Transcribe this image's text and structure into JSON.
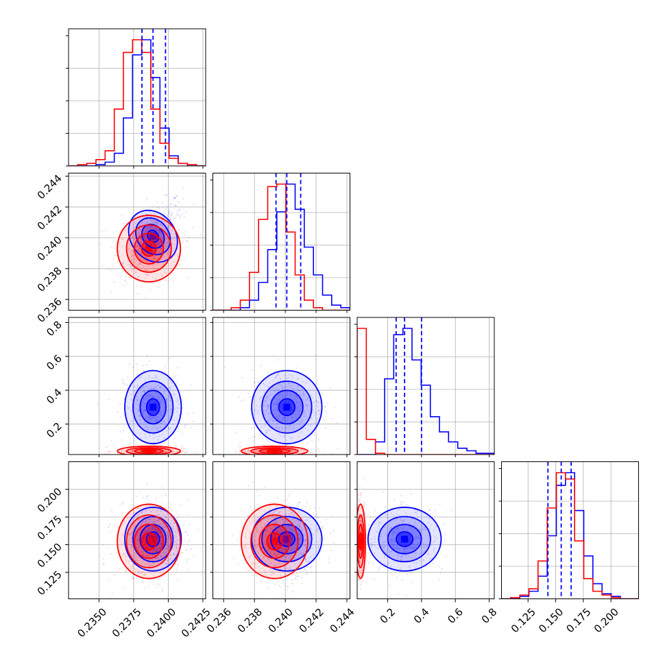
{
  "chart_data": {
    "type": "corner",
    "grid": true,
    "colors": {
      "series_a": "#0000ff",
      "series_b": "#ff0000"
    },
    "params": [
      {
        "range": [
          0.2328,
          0.2427
        ],
        "ticks": [
          0.235,
          0.2375,
          0.24,
          0.2425
        ],
        "tick_labels": [
          "0.2350",
          "0.2375",
          "0.2400",
          "0.2425"
        ]
      },
      {
        "range": [
          0.2353,
          0.2442
        ],
        "ticks": [
          0.236,
          0.238,
          0.24,
          0.242,
          0.244
        ],
        "tick_labels": [
          "0.236",
          "0.238",
          "0.240",
          "0.242",
          "0.244"
        ]
      },
      {
        "range": [
          0.02,
          0.83
        ],
        "ticks": [
          0.2,
          0.4,
          0.6,
          0.8
        ],
        "tick_labels": [
          "0.2",
          "0.4",
          "0.6",
          "0.8"
        ]
      },
      {
        "range": [
          0.101,
          0.225
        ],
        "ticks": [
          0.125,
          0.15,
          0.175,
          0.2
        ],
        "tick_labels": [
          "0.125",
          "0.150",
          "0.175",
          "0.200"
        ]
      }
    ],
    "series": [
      {
        "key": "a",
        "color": "#0000ff",
        "center": [
          0.2389,
          0.2401,
          0.3,
          0.155
        ],
        "sd": [
          0.00085,
          0.00095,
          0.09,
          0.012
        ],
        "corr": {
          "0-1": 0.7
        },
        "quantiles": [
          [
            0.2381,
            0.2389,
            0.2398
          ],
          [
            0.2394,
            0.2401,
            0.241
          ],
          [
            0.25,
            0.3,
            0.4
          ],
          [
            0.143,
            0.155,
            0.164
          ]
        ],
        "histograms": [
          [
            0.0,
            0.0,
            0.0,
            0.01,
            0.03,
            0.1,
            0.38,
            0.88,
            1.0,
            0.7,
            0.3,
            0.08,
            0.02,
            0.0,
            0.0
          ],
          [
            0.0,
            0.0,
            0.0,
            0.02,
            0.08,
            0.22,
            0.48,
            0.78,
            1.0,
            0.8,
            0.5,
            0.28,
            0.12,
            0.04,
            0.02
          ],
          [
            0.0,
            0.0,
            0.1,
            0.6,
            0.95,
            1.0,
            0.75,
            0.55,
            0.3,
            0.18,
            0.1,
            0.05,
            0.03,
            0.01,
            0.01
          ],
          [
            0.0,
            0.0,
            0.02,
            0.06,
            0.18,
            0.5,
            0.9,
            1.0,
            0.7,
            0.34,
            0.12,
            0.04,
            0.02,
            0.0,
            0.0
          ]
        ]
      },
      {
        "key": "b",
        "color": "#ff0000",
        "center": [
          0.2386,
          0.2393,
          0.04,
          0.153
        ],
        "sd": [
          0.00095,
          0.0009,
          0.012,
          0.014
        ],
        "corr": {},
        "quantiles": [],
        "histograms": [
          [
            0.0,
            0.01,
            0.02,
            0.05,
            0.12,
            0.45,
            0.9,
            1.0,
            0.9,
            0.45,
            0.18,
            0.06,
            0.02,
            0.01,
            0.0
          ],
          [
            0.0,
            0.0,
            0.02,
            0.08,
            0.3,
            0.72,
            0.98,
            1.0,
            0.62,
            0.28,
            0.08,
            0.02,
            0.0,
            0.0,
            0.0
          ],
          [
            1.0,
            0.12,
            0.01,
            0.0,
            0.0,
            0.0,
            0.0,
            0.0,
            0.0,
            0.0,
            0.0,
            0.0,
            0.0,
            0.0,
            0.0
          ],
          [
            0.0,
            0.01,
            0.03,
            0.08,
            0.3,
            0.72,
            1.0,
            0.95,
            0.46,
            0.16,
            0.06,
            0.03,
            0.01,
            0.0,
            0.0
          ]
        ]
      }
    ]
  }
}
